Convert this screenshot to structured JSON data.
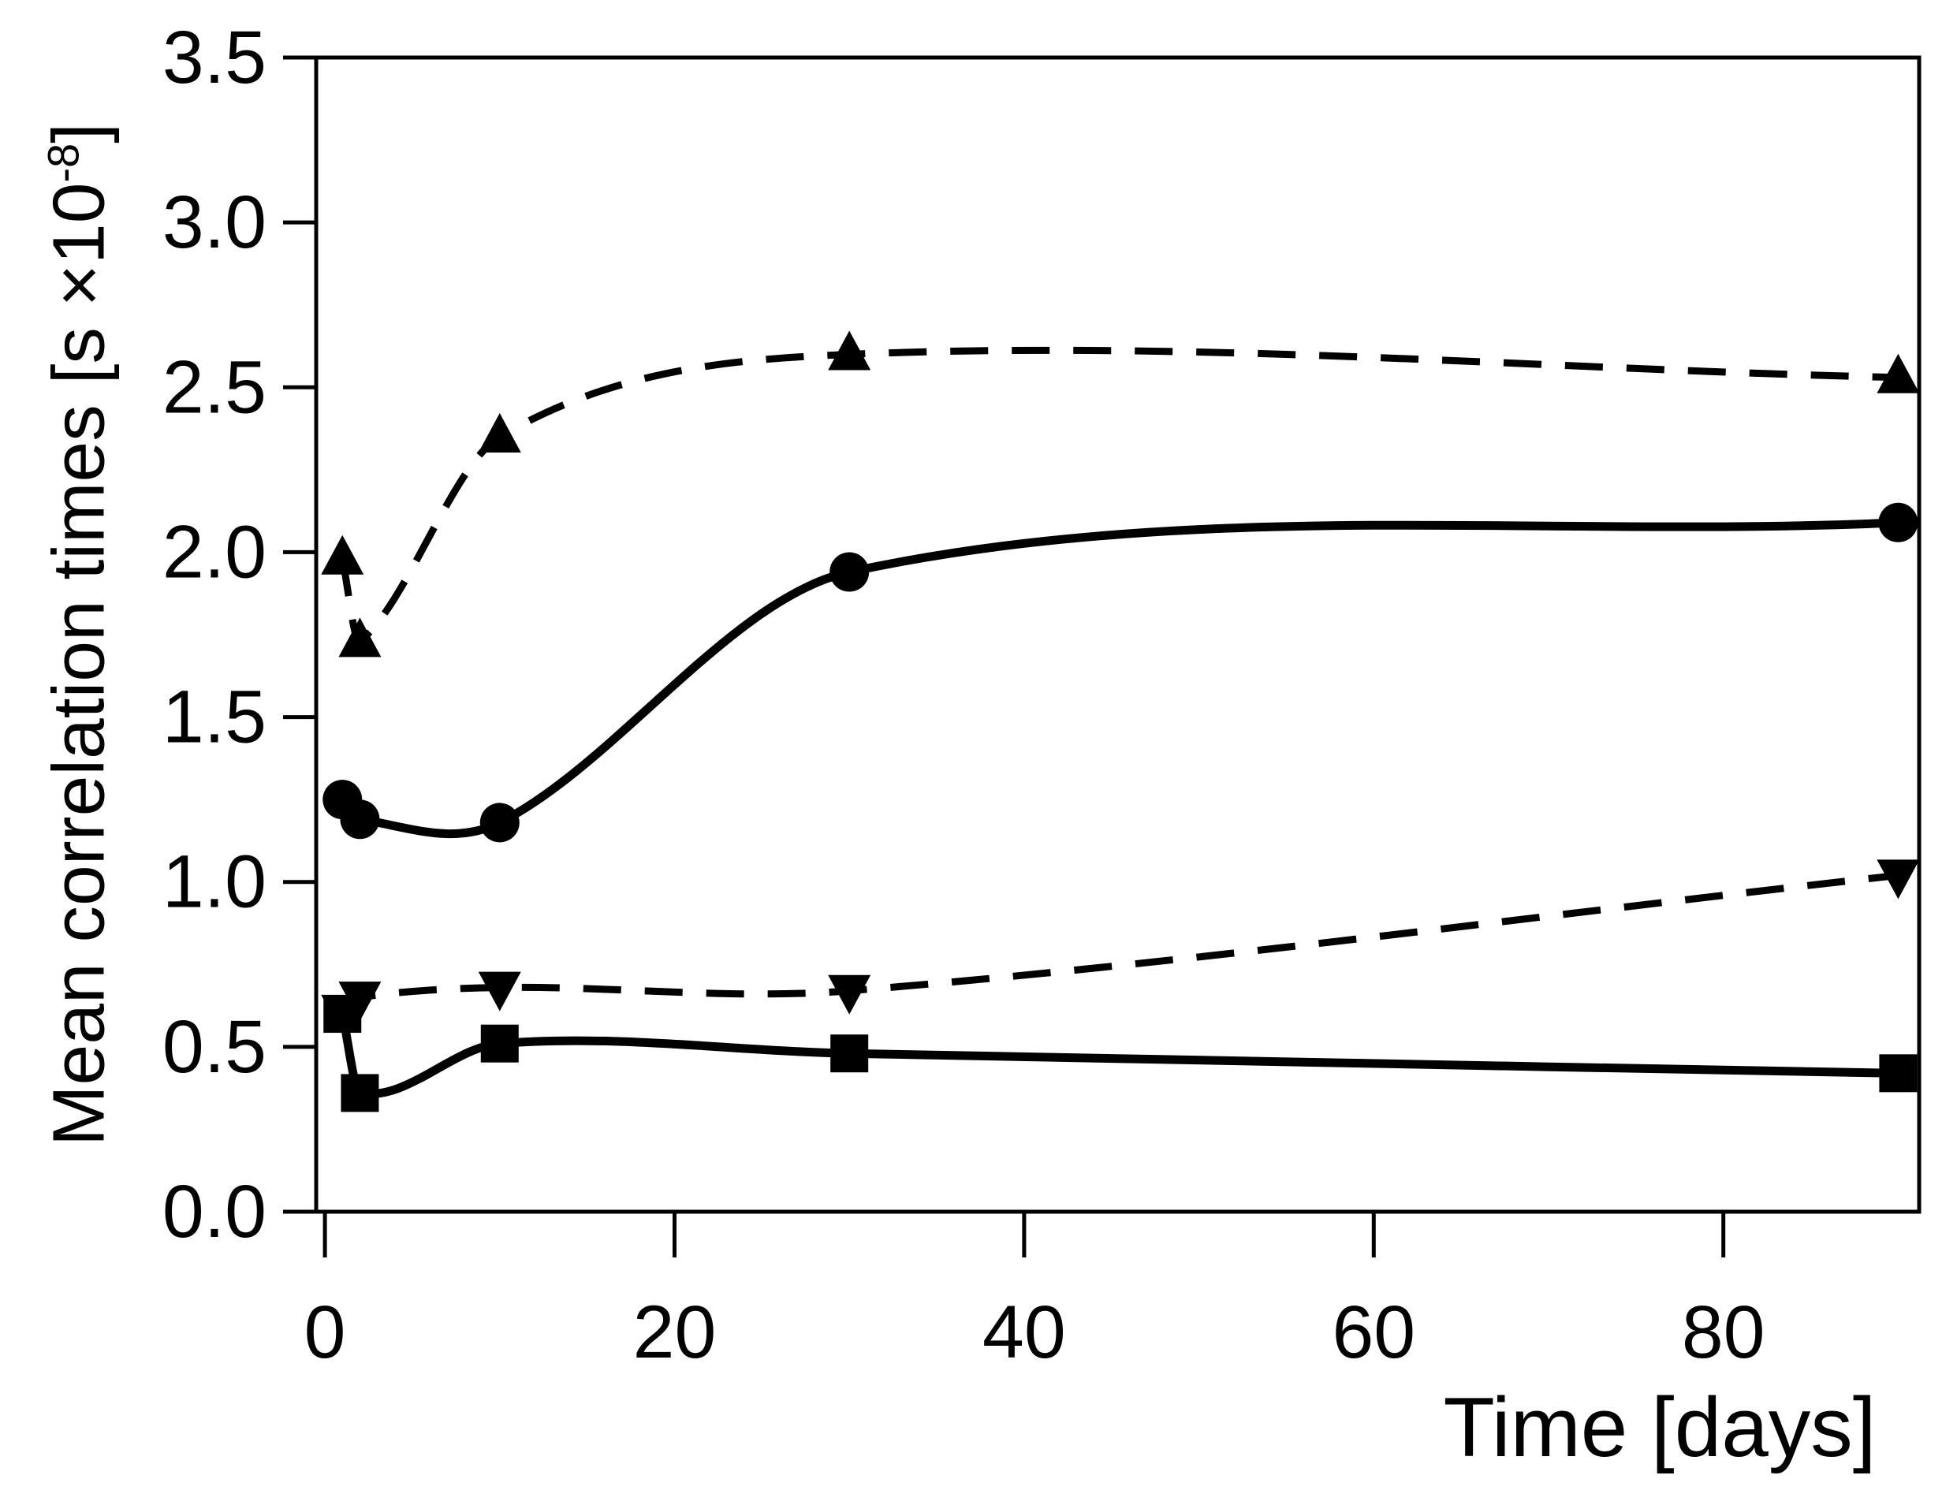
{
  "chart_data": {
    "type": "line",
    "title": "",
    "xlabel": "Time [days]",
    "ylabel_prefix": "Mean correlation times [s ×10",
    "ylabel_superscript": "-8",
    "ylabel_suffix": "]",
    "xlim": [
      -0.5,
      91.2
    ],
    "ylim": [
      0.0,
      3.5
    ],
    "x_ticks": [
      "0",
      "20",
      "40",
      "60",
      "80"
    ],
    "y_ticks": [
      "0.0",
      "0.5",
      "1.0",
      "1.5",
      "2.0",
      "2.5",
      "3.0",
      "3.5"
    ],
    "grid": false,
    "legend": false,
    "frame_box": true,
    "colors": {
      "foreground": "#000000",
      "background": "#ffffff"
    },
    "series": [
      {
        "name": "triangle-up-dashed",
        "marker": "triangle-up",
        "line": "dashed",
        "x": [
          1,
          2,
          10,
          30,
          90
        ],
        "y": [
          1.98,
          1.73,
          2.35,
          2.6,
          2.53
        ]
      },
      {
        "name": "circle-solid",
        "marker": "circle",
        "line": "solid",
        "x": [
          1,
          2,
          10,
          30,
          90
        ],
        "y": [
          1.25,
          1.19,
          1.18,
          1.94,
          2.09
        ]
      },
      {
        "name": "triangle-down-dashed",
        "marker": "triangle-down",
        "line": "dashed",
        "x": [
          1,
          2,
          10,
          30,
          90
        ],
        "y": [
          0.61,
          0.65,
          0.68,
          0.67,
          1.02
        ]
      },
      {
        "name": "square-solid",
        "marker": "square",
        "line": "solid",
        "x": [
          1,
          2,
          10,
          30,
          90
        ],
        "y": [
          0.6,
          0.36,
          0.51,
          0.48,
          0.42
        ]
      }
    ]
  }
}
